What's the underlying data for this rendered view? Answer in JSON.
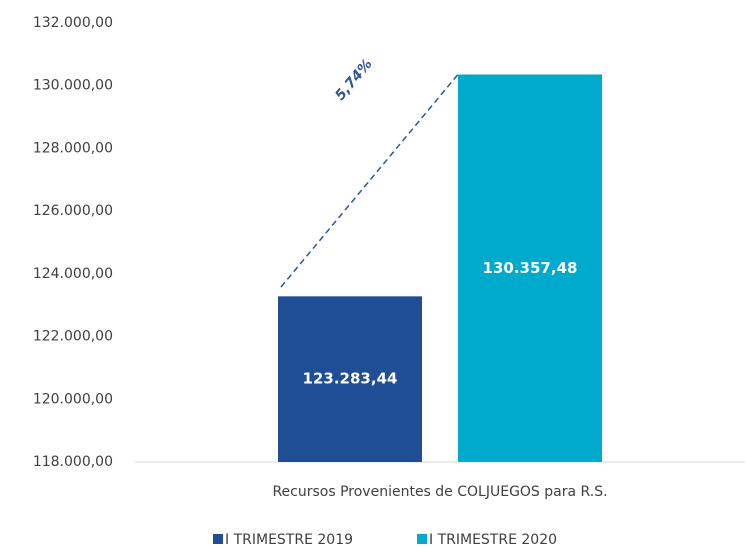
{
  "chart_data": {
    "type": "bar",
    "categories": [
      "Recursos Provenientes de COLJUEGOS para R.S."
    ],
    "series": [
      {
        "name": "I TRIMESTRE 2019",
        "color": "#1f4e96",
        "values": [
          123283.44
        ],
        "value_labels": [
          "123.283,44"
        ]
      },
      {
        "name": "I TRIMESTRE 2020",
        "color": "#00aacc",
        "values": [
          130357.48
        ],
        "value_labels": [
          "130.357,48"
        ]
      }
    ],
    "annotation": "5,74%",
    "ylim": [
      118000,
      132000
    ],
    "yticks": [
      {
        "value": 118000,
        "label": "118.000,00"
      },
      {
        "value": 120000,
        "label": "120.000,00"
      },
      {
        "value": 122000,
        "label": "122.000,00"
      },
      {
        "value": 124000,
        "label": "124.000,00"
      },
      {
        "value": 126000,
        "label": "126.000,00"
      },
      {
        "value": 128000,
        "label": "128.000,00"
      },
      {
        "value": 130000,
        "label": "130.000,00"
      },
      {
        "value": 132000,
        "label": "132.000,00"
      }
    ],
    "legend": "bottom"
  }
}
